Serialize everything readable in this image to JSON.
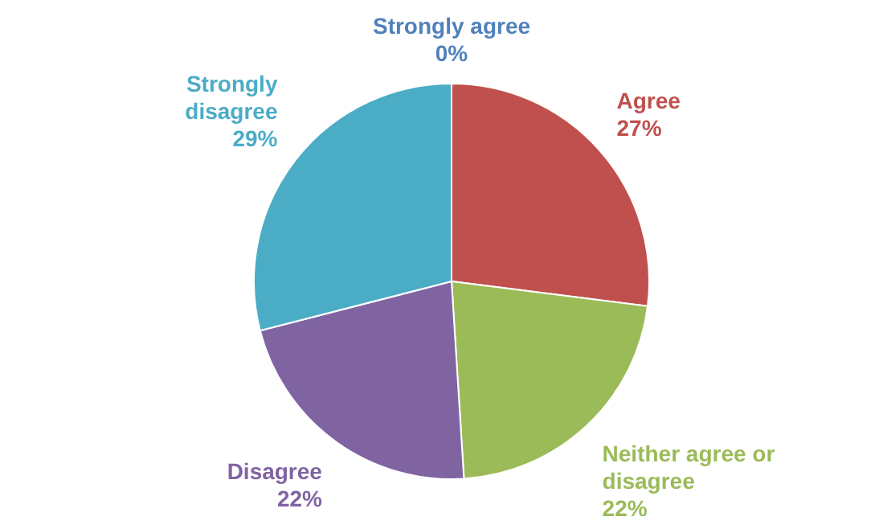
{
  "chart_data": {
    "type": "pie",
    "categories": [
      "Strongly agree",
      "Agree",
      "Neither agree or disagree",
      "Disagree",
      "Strongly disagree"
    ],
    "values": [
      0,
      27,
      22,
      22,
      29
    ],
    "colors": [
      "#4f81bd",
      "#c0504d",
      "#9bbb59",
      "#8064a2",
      "#4bacc6"
    ],
    "value_labels": [
      "0%",
      "27%",
      "22%",
      "22%",
      "29%"
    ],
    "legend": false
  }
}
